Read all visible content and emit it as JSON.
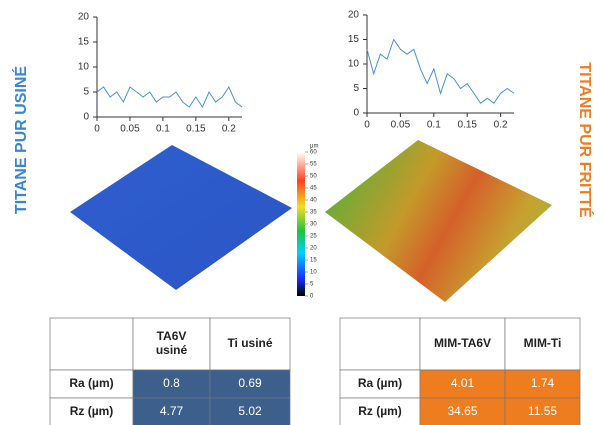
{
  "chart_data": [
    {
      "type": "line",
      "x": [
        0,
        0.01,
        0.02,
        0.03,
        0.04,
        0.05,
        0.06,
        0.07,
        0.08,
        0.09,
        0.1,
        0.11,
        0.12,
        0.13,
        0.14,
        0.15,
        0.16,
        0.17,
        0.18,
        0.19,
        0.2,
        0.21,
        0.22
      ],
      "series": [
        {
          "color": "#4a90d9",
          "values": [
            5,
            6,
            4,
            5,
            3,
            6,
            5,
            4,
            5,
            3,
            4,
            4,
            5,
            3,
            2,
            4,
            2,
            5,
            3,
            4,
            6,
            3,
            2
          ]
        }
      ],
      "xlim": [
        0,
        0.22
      ],
      "xticks": [
        0,
        0.05,
        0.1,
        0.15,
        0.2
      ],
      "ylim": [
        0,
        20
      ],
      "yticks": [
        0,
        5,
        10,
        15,
        20
      ]
    },
    {
      "type": "line",
      "x": [
        0,
        0.01,
        0.02,
        0.03,
        0.04,
        0.05,
        0.06,
        0.07,
        0.08,
        0.09,
        0.1,
        0.11,
        0.12,
        0.13,
        0.14,
        0.15,
        0.16,
        0.17,
        0.18,
        0.19,
        0.2,
        0.21,
        0.22
      ],
      "series": [
        {
          "color": "#4a90d9",
          "values": [
            13,
            8,
            12,
            11,
            15,
            13,
            12,
            13,
            9,
            6,
            9,
            4,
            8,
            7,
            5,
            6,
            4,
            2,
            3,
            2,
            4,
            5,
            4
          ]
        }
      ],
      "xlim": [
        0,
        0.22
      ],
      "xticks": [
        0,
        0.05,
        0.1,
        0.15,
        0.2
      ],
      "ylim": [
        0,
        20
      ],
      "yticks": [
        0,
        5,
        10,
        15,
        20
      ]
    }
  ],
  "colorscale": {
    "unit": "µm",
    "lim": [
      0,
      60
    ],
    "ticks": [
      0,
      5,
      10,
      15,
      20,
      25,
      30,
      35,
      40,
      45,
      50,
      55,
      60
    ]
  },
  "labels": {
    "left": "TITANE PUR USINÉ",
    "right": "TITANE PUR FRITTÉ"
  },
  "tables": [
    {
      "headers": [
        "TA6V usiné",
        "Ti usiné"
      ],
      "rows": [
        [
          "Ra (µm)",
          "0.8",
          "0.69"
        ],
        [
          "Rz (µm)",
          "4.77",
          "5.02"
        ]
      ]
    },
    {
      "headers": [
        "MIM-TA6V",
        "MIM-Ti"
      ],
      "rows": [
        [
          "Ra (µm)",
          "4.01",
          "1.74"
        ],
        [
          "Rz (µm)",
          "34.65",
          "11.55"
        ]
      ]
    }
  ]
}
